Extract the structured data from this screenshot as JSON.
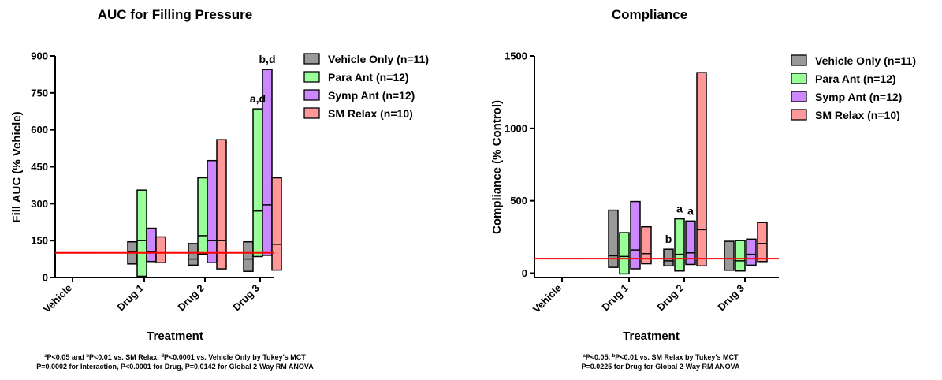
{
  "legend_entries": [
    {
      "label": "Vehicle Only (n=11)",
      "color": "#999999"
    },
    {
      "label": "Para Ant (n=12)",
      "color": "#99ff99"
    },
    {
      "label": "Symp Ant (n=12)",
      "color": "#cc88ff"
    },
    {
      "label": "SM Relax (n=10)",
      "color": "#ff9999"
    }
  ],
  "reference_line_color": "#ff0000",
  "chart_data": [
    {
      "type": "box",
      "title": "AUC for Filling Pressure",
      "xlabel": "Treatment",
      "ylabel": "Fill AUC (% Vehicle)",
      "ylim": [
        0,
        900
      ],
      "yticks": [
        0,
        150,
        300,
        450,
        600,
        750,
        900
      ],
      "categories": [
        "Vehicle",
        "Drug 1",
        "Drug 2",
        "Drug 3"
      ],
      "reference_line": 100,
      "series": [
        {
          "name": "Vehicle Only (n=11)",
          "color": "#999999",
          "boxes": [
            [
              100,
              100,
              100
            ],
            [
              55,
              105,
              145
            ],
            [
              50,
              75,
              138
            ],
            [
              25,
              75,
              145
            ]
          ]
        },
        {
          "name": "Para Ant (n=12)",
          "color": "#99ff99",
          "boxes": [
            [
              100,
              100,
              100
            ],
            [
              5,
              150,
              355
            ],
            [
              95,
              170,
              405
            ],
            [
              85,
              270,
              685
            ]
          ]
        },
        {
          "name": "Symp Ant (n=12)",
          "color": "#cc88ff",
          "boxes": [
            [
              100,
              100,
              100
            ],
            [
              65,
              105,
              200
            ],
            [
              60,
              150,
              475
            ],
            [
              90,
              295,
              845
            ]
          ]
        },
        {
          "name": "SM Relax (n=10)",
          "color": "#ff9999",
          "boxes": [
            [
              100,
              100,
              100
            ],
            [
              60,
              100,
              165
            ],
            [
              35,
              150,
              560
            ],
            [
              30,
              135,
              405
            ]
          ]
        }
      ],
      "annotations": [
        {
          "text": "a,d",
          "category": "Drug 3",
          "series": "Para Ant (n=12)"
        },
        {
          "text": "b,d",
          "category": "Drug 3",
          "series": "Symp Ant (n=12)"
        }
      ],
      "footnote_lines": [
        {
          "parts": [
            {
              "t": "a",
              "sup": true
            },
            {
              "t": "P<0.05 and "
            },
            {
              "t": "b",
              "sup": true
            },
            {
              "t": "P<0.01 vs. SM Relax, "
            },
            {
              "t": "d",
              "sup": true
            },
            {
              "t": "P<0.0001 vs. Vehicle Only by Tukey's MCT"
            }
          ]
        },
        {
          "parts": [
            {
              "t": "P=0.0002 for Interaction, P<0.0001 for Drug, P=0.0142 for Global 2-Way RM ANOVA"
            }
          ]
        }
      ]
    },
    {
      "type": "box",
      "title": "Compliance",
      "xlabel": "Treatment",
      "ylabel": "Compliance (% Control)",
      "ylim": [
        -30,
        1500
      ],
      "yticks": [
        0,
        500,
        1000,
        1500
      ],
      "categories": [
        "Vehicle",
        "Drug 1",
        "Drug 2",
        "Drug 3"
      ],
      "reference_line": 100,
      "series": [
        {
          "name": "Vehicle Only (n=11)",
          "color": "#999999",
          "boxes": [
            [
              100,
              100,
              100
            ],
            [
              40,
              120,
              435
            ],
            [
              50,
              85,
              165
            ],
            [
              20,
              100,
              220
            ]
          ]
        },
        {
          "name": "Para Ant (n=12)",
          "color": "#99ff99",
          "boxes": [
            [
              100,
              100,
              100
            ],
            [
              -5,
              115,
              280
            ],
            [
              15,
              130,
              375
            ],
            [
              15,
              85,
              225
            ]
          ]
        },
        {
          "name": "Symp Ant (n=12)",
          "color": "#cc88ff",
          "boxes": [
            [
              100,
              100,
              100
            ],
            [
              30,
              160,
              495
            ],
            [
              60,
              140,
              360
            ],
            [
              55,
              130,
              235
            ]
          ]
        },
        {
          "name": "SM Relax (n=10)",
          "color": "#ff9999",
          "boxes": [
            [
              100,
              100,
              100
            ],
            [
              65,
              135,
              320
            ],
            [
              50,
              300,
              1385
            ],
            [
              80,
              205,
              350
            ]
          ]
        }
      ],
      "annotations": [
        {
          "text": "b",
          "category": "Drug 2",
          "series": "Vehicle Only (n=11)"
        },
        {
          "text": "a",
          "category": "Drug 2",
          "series": "Para Ant (n=12)"
        },
        {
          "text": "a",
          "category": "Drug 2",
          "series": "Symp Ant (n=12)"
        }
      ],
      "footnote_lines": [
        {
          "parts": [
            {
              "t": "a",
              "sup": true
            },
            {
              "t": "P<0.05, "
            },
            {
              "t": "b",
              "sup": true
            },
            {
              "t": "P<0.01 vs. SM Relax by Tukey's MCT"
            }
          ]
        },
        {
          "parts": [
            {
              "t": "P=0.0225 for Drug for Global 2-Way RM ANOVA"
            }
          ]
        }
      ]
    }
  ]
}
